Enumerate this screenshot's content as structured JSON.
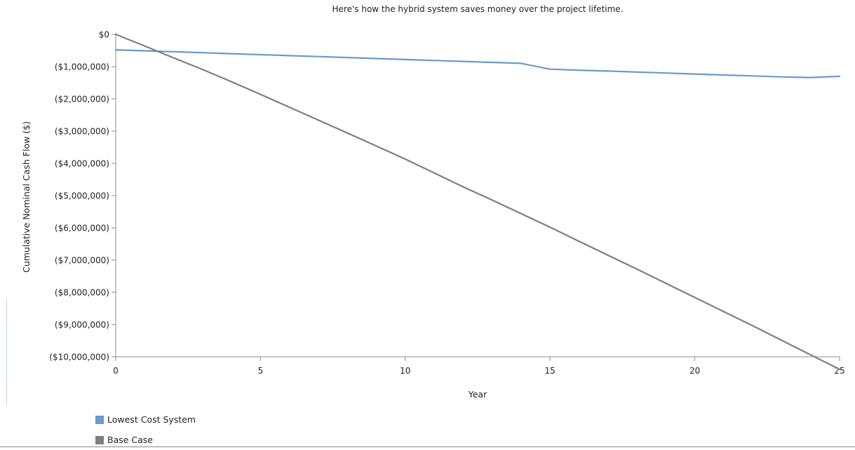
{
  "chart_data": {
    "type": "line",
    "title": "Here's how the hybrid system saves money over the project lifetime.",
    "xlabel": "Year",
    "ylabel": "Cumulative Nominal Cash Flow ($)",
    "xlim": [
      0,
      25
    ],
    "ylim": [
      -10000000,
      0
    ],
    "x_ticks": [
      "0",
      "5",
      "10",
      "15",
      "20",
      "25"
    ],
    "y_ticks": [
      "$0",
      "($1,000,000)",
      "($2,000,000)",
      "($3,000,000)",
      "($4,000,000)",
      "($5,000,000)",
      "($6,000,000)",
      "($7,000,000)",
      "($8,000,000)",
      "($9,000,000)",
      "($10,000,000)"
    ],
    "grid": false,
    "legend_position": "bottom-left",
    "x": [
      0,
      1,
      2,
      3,
      4,
      5,
      6,
      7,
      8,
      9,
      10,
      11,
      12,
      13,
      14,
      15,
      16,
      17,
      18,
      19,
      20,
      21,
      22,
      23,
      24,
      25
    ],
    "series": [
      {
        "name": "Lowest Cost System",
        "color": "#6a99cb",
        "values": [
          -480000,
          -510000,
          -540000,
          -570000,
          -600000,
          -630000,
          -660000,
          -690000,
          -720000,
          -750000,
          -780000,
          -810000,
          -840000,
          -870000,
          -900000,
          -1080000,
          -1110000,
          -1140000,
          -1170000,
          -1200000,
          -1230000,
          -1260000,
          -1290000,
          -1320000,
          -1340000,
          -1300000
        ]
      },
      {
        "name": "Base Case",
        "color": "#7f7f7f",
        "values": [
          0,
          -360000,
          -730000,
          -1090000,
          -1470000,
          -1860000,
          -2260000,
          -2660000,
          -3060000,
          -3460000,
          -3870000,
          -4300000,
          -4730000,
          -5140000,
          -5560000,
          -5980000,
          -6420000,
          -6850000,
          -7280000,
          -7720000,
          -8160000,
          -8600000,
          -9040000,
          -9490000,
          -9940000,
          -10390000
        ]
      }
    ]
  }
}
